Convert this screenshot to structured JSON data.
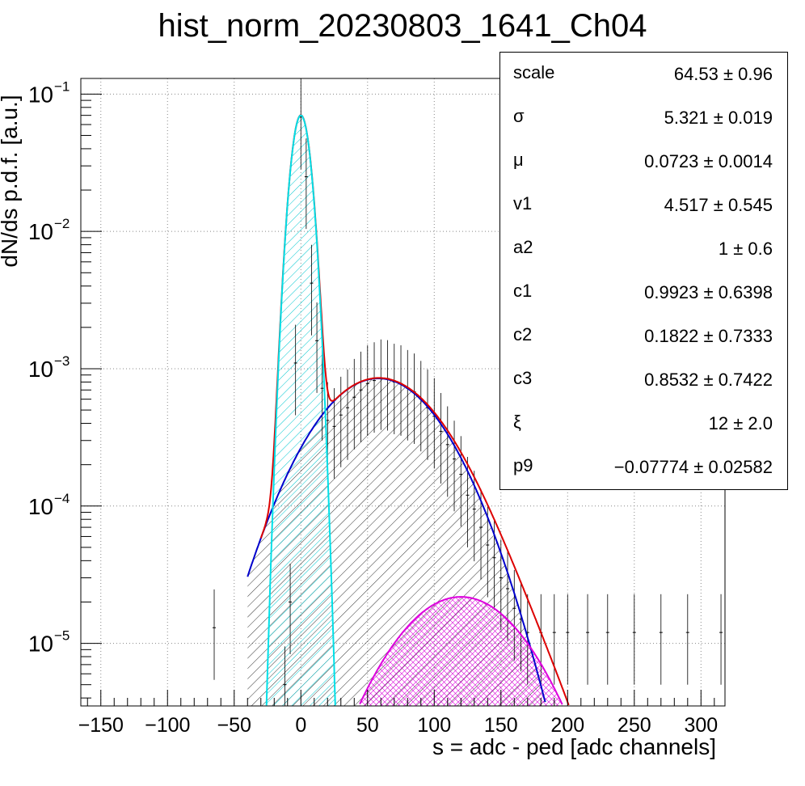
{
  "title": "hist_norm_20230803_1641_Ch04",
  "colors": {
    "total": "#dd0000",
    "pedestal": "#00e0e8",
    "first": "#0000cc",
    "second": "#dd00dd",
    "data": "#000000"
  },
  "chart_data": {
    "type": "line",
    "title": "hist_norm_20230803_1641_Ch04",
    "xlabel": "s = adc - ped [adc channels]",
    "ylabel": "dN/ds p.d.f. [a.u.]",
    "xlim": [
      -165,
      318
    ],
    "ylim": [
      3.5e-06,
      0.13
    ],
    "yscale": "log",
    "grid": true,
    "x_ticks": [
      -150,
      -100,
      -50,
      0,
      50,
      100,
      150,
      200,
      250,
      300
    ],
    "y_ticks": [
      {
        "value": 0.1,
        "base": "10",
        "exp": "−1"
      },
      {
        "value": 0.01,
        "base": "10",
        "exp": "−2"
      },
      {
        "value": 0.001,
        "base": "10",
        "exp": "−3"
      },
      {
        "value": 0.0001,
        "base": "10",
        "exp": "−4"
      },
      {
        "value": 1e-05,
        "base": "10",
        "exp": "−5"
      }
    ],
    "series": [
      {
        "role": "pedestal",
        "color": "#00e0e8",
        "model": "gauss",
        "amp": 0.07,
        "mean": 0,
        "sigma": 5.8
      },
      {
        "role": "first",
        "color": "#0000cc",
        "model": "gauss",
        "amp": 0.00085,
        "mean": 58,
        "sigma": 38
      },
      {
        "role": "second",
        "color": "#dd00dd",
        "model": "gauss",
        "amp": 2.18e-05,
        "mean": 120,
        "sigma": 40
      },
      {
        "role": "total",
        "color": "#dd0000",
        "model": "sum"
      }
    ],
    "histogram_points": [
      [
        -65,
        1.3e-05
      ],
      [
        -12,
        5e-06
      ],
      [
        -8,
        2e-05
      ],
      [
        -4,
        0.0011
      ],
      [
        0,
        0.068
      ],
      [
        4,
        0.025
      ],
      [
        8,
        0.0042
      ],
      [
        12,
        0.0016
      ],
      [
        16,
        0.00072
      ],
      [
        20,
        0.00042
      ],
      [
        25,
        0.00038
      ],
      [
        30,
        0.00046
      ],
      [
        35,
        0.00052
      ],
      [
        40,
        0.00062
      ],
      [
        45,
        0.0007
      ],
      [
        50,
        0.00078
      ],
      [
        55,
        0.00082
      ],
      [
        60,
        0.00086
      ],
      [
        65,
        0.00085
      ],
      [
        70,
        0.0008
      ],
      [
        75,
        0.00078
      ],
      [
        80,
        0.00072
      ],
      [
        85,
        0.00068
      ],
      [
        90,
        0.0006
      ],
      [
        95,
        0.00052
      ],
      [
        100,
        0.00045
      ],
      [
        105,
        0.00035
      ],
      [
        110,
        0.00028
      ],
      [
        115,
        0.00022
      ],
      [
        120,
        0.00017
      ],
      [
        125,
        0.00012
      ],
      [
        130,
        9.5e-05
      ],
      [
        135,
        7e-05
      ],
      [
        140,
        5.2e-05
      ],
      [
        145,
        4.2e-05
      ],
      [
        150,
        3e-05
      ],
      [
        155,
        2.5e-05
      ],
      [
        160,
        1.8e-05
      ],
      [
        165,
        1.5e-05
      ],
      [
        170,
        1.2e-05
      ],
      [
        180,
        1.2e-05
      ],
      [
        190,
        1.2e-05
      ],
      [
        200,
        1.2e-05
      ],
      [
        215,
        1.2e-05
      ],
      [
        230,
        1.2e-05
      ],
      [
        250,
        1.2e-05
      ],
      [
        270,
        1.2e-05
      ],
      [
        290,
        1.2e-05
      ],
      [
        315,
        1.2e-05
      ]
    ]
  },
  "stats": [
    {
      "name": "scale",
      "value": "64.53 ± 0.96"
    },
    {
      "name": "σ",
      "value": "5.321 ± 0.019"
    },
    {
      "name": "μ",
      "value": "0.0723 ± 0.0014"
    },
    {
      "name": "v1",
      "value": "4.517 ± 0.545"
    },
    {
      "name": "a2",
      "value": "1 ± 0.6"
    },
    {
      "name": "c1",
      "value": "0.9923 ± 0.6398"
    },
    {
      "name": "c2",
      "value": "0.1822 ± 0.7333"
    },
    {
      "name": "c3",
      "value": "0.8532 ± 0.7422"
    },
    {
      "name": "ξ",
      "value": "12 ± 2.0"
    },
    {
      "name": "p9",
      "value": "−0.07774 ± 0.02582"
    }
  ]
}
